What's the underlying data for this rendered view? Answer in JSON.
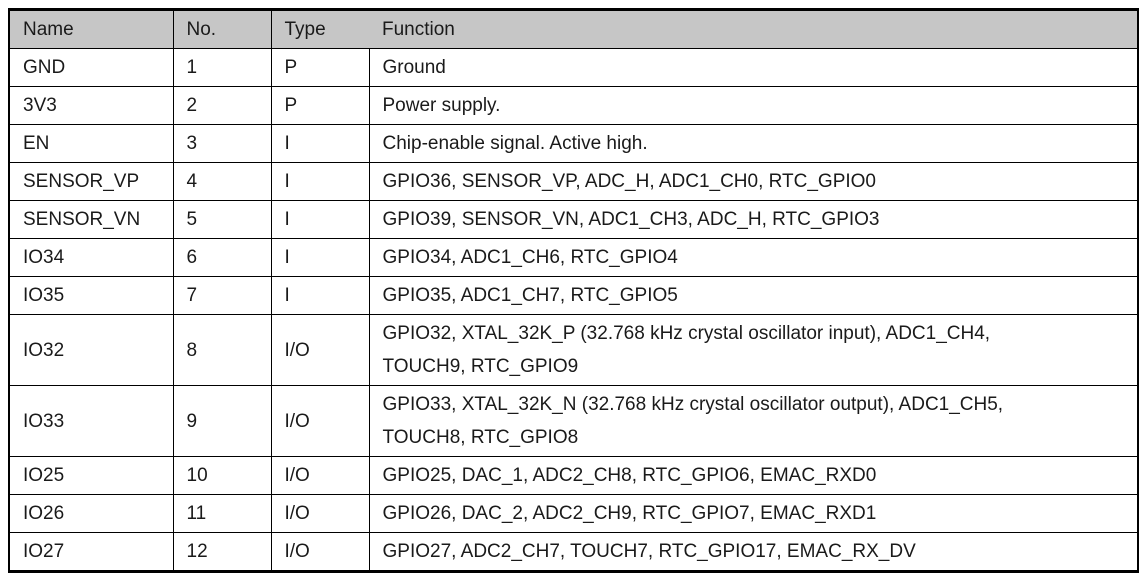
{
  "table": {
    "headers": [
      "Name",
      "No.",
      "Type",
      "Function"
    ],
    "rows": [
      {
        "name": "GND",
        "no": "1",
        "type": "P",
        "function": "Ground"
      },
      {
        "name": "3V3",
        "no": "2",
        "type": "P",
        "function": "Power supply."
      },
      {
        "name": "EN",
        "no": "3",
        "type": "I",
        "function": "Chip-enable signal. Active high."
      },
      {
        "name": "SENSOR_VP",
        "no": "4",
        "type": "I",
        "function": "GPIO36, SENSOR_VP, ADC_H, ADC1_CH0, RTC_GPIO0"
      },
      {
        "name": "SENSOR_VN",
        "no": "5",
        "type": "I",
        "function": "GPIO39, SENSOR_VN, ADC1_CH3, ADC_H, RTC_GPIO3"
      },
      {
        "name": "IO34",
        "no": "6",
        "type": "I",
        "function": "GPIO34, ADC1_CH6, RTC_GPIO4"
      },
      {
        "name": "IO35",
        "no": "7",
        "type": "I",
        "function": "GPIO35, ADC1_CH7, RTC_GPIO5"
      },
      {
        "name": "IO32",
        "no": "8",
        "type": "I/O",
        "function": "GPIO32, XTAL_32K_P (32.768 kHz crystal oscillator input), ADC1_CH4,\nTOUCH9, RTC_GPIO9"
      },
      {
        "name": "IO33",
        "no": "9",
        "type": "I/O",
        "function": "GPIO33, XTAL_32K_N (32.768 kHz crystal oscillator output), ADC1_CH5,\nTOUCH8, RTC_GPIO8"
      },
      {
        "name": "IO25",
        "no": "10",
        "type": "I/O",
        "function": "GPIO25, DAC_1, ADC2_CH8, RTC_GPIO6, EMAC_RXD0"
      },
      {
        "name": "IO26",
        "no": "11",
        "type": "I/O",
        "function": "GPIO26, DAC_2, ADC2_CH9, RTC_GPIO7, EMAC_RXD1"
      },
      {
        "name": "IO27",
        "no": "12",
        "type": "I/O",
        "function": "GPIO27, ADC2_CH7, TOUCH7, RTC_GPIO17, EMAC_RX_DV"
      }
    ],
    "colors": {
      "header_bg": "#c6c6c6",
      "border": "#000000",
      "text": "#1a1a1a"
    }
  }
}
